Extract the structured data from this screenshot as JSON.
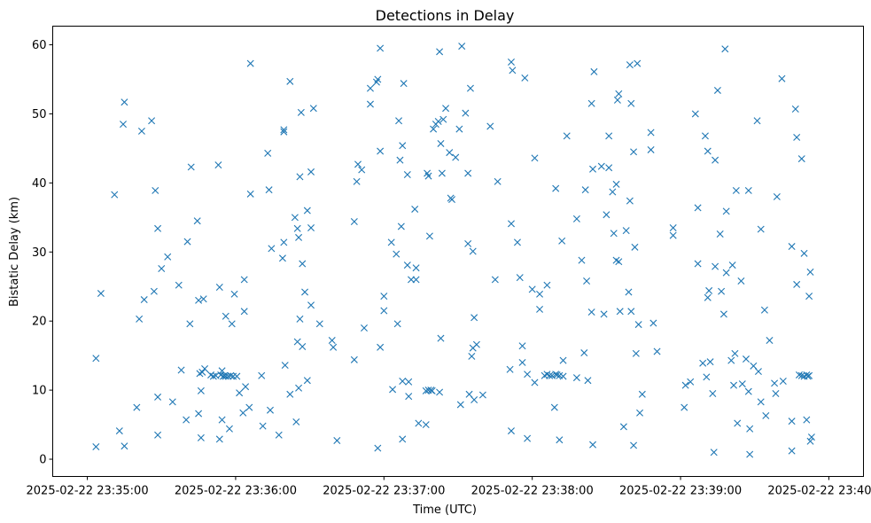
{
  "chart_data": {
    "type": "scatter",
    "title": "Detections in Delay",
    "xlabel": "Time (UTC)",
    "ylabel": "Bistatic Delay (km)",
    "marker": "x",
    "color": "#1f77b4",
    "grid": false,
    "x_unit": "seconds after 2025-02-22 23:35:00",
    "xlim": [
      -14,
      314
    ],
    "ylim": [
      -2.5,
      62.7
    ],
    "x_ticks": [
      {
        "value": 0,
        "label": "2025-02-22 23:35:00"
      },
      {
        "value": 60,
        "label": "2025-02-22 23:36:00"
      },
      {
        "value": 120,
        "label": "2025-02-22 23:37:00"
      },
      {
        "value": 180,
        "label": "2025-02-22 23:38:00"
      },
      {
        "value": 240,
        "label": "2025-02-22 23:39:00"
      },
      {
        "value": 300,
        "label": "2025-02-22 23:40:00"
      }
    ],
    "y_ticks": [
      {
        "value": 0,
        "label": "0"
      },
      {
        "value": 10,
        "label": "10"
      },
      {
        "value": 20,
        "label": "20"
      },
      {
        "value": 30,
        "label": "30"
      },
      {
        "value": 40,
        "label": "40"
      },
      {
        "value": 50,
        "label": "50"
      },
      {
        "value": 60,
        "label": "60"
      }
    ],
    "points": [
      [
        3.5,
        14.6
      ],
      [
        3.5,
        1.8
      ],
      [
        5.5,
        24.0
      ],
      [
        11,
        38.3
      ],
      [
        13,
        4.1
      ],
      [
        14.5,
        48.5
      ],
      [
        15,
        51.7
      ],
      [
        15,
        1.9
      ],
      [
        20,
        7.5
      ],
      [
        21,
        20.3
      ],
      [
        22,
        47.5
      ],
      [
        23,
        23.1
      ],
      [
        26,
        49.0
      ],
      [
        27,
        24.3
      ],
      [
        27.5,
        38.9
      ],
      [
        28.5,
        33.4
      ],
      [
        28.5,
        9.0
      ],
      [
        28.5,
        3.5
      ],
      [
        30,
        27.6
      ],
      [
        32.5,
        29.3
      ],
      [
        34.5,
        8.3
      ],
      [
        37,
        25.2
      ],
      [
        38,
        12.9
      ],
      [
        40,
        5.7
      ],
      [
        40.5,
        31.5
      ],
      [
        41.5,
        19.6
      ],
      [
        42,
        42.3
      ],
      [
        44.5,
        34.5
      ],
      [
        45,
        6.6
      ],
      [
        45,
        23.0
      ],
      [
        45.5,
        12.4
      ],
      [
        46,
        9.9
      ],
      [
        46,
        3.1
      ],
      [
        46.5,
        12.6
      ],
      [
        47,
        23.2
      ],
      [
        47.5,
        13.1
      ],
      [
        50,
        12.2
      ],
      [
        51,
        12.0
      ],
      [
        52,
        12.1
      ],
      [
        53,
        42.6
      ],
      [
        53.5,
        2.9
      ],
      [
        53.5,
        24.9
      ],
      [
        54,
        12.2
      ],
      [
        54.5,
        12.8
      ],
      [
        54.5,
        5.7
      ],
      [
        55,
        12.0
      ],
      [
        55.5,
        12.1
      ],
      [
        56,
        12.0
      ],
      [
        56,
        20.7
      ],
      [
        57,
        12.0
      ],
      [
        57.5,
        4.4
      ],
      [
        58,
        12.1
      ],
      [
        58.5,
        19.6
      ],
      [
        59,
        12.0
      ],
      [
        59.5,
        23.9
      ],
      [
        60.5,
        12.0
      ],
      [
        61.5,
        9.6
      ],
      [
        63,
        6.7
      ],
      [
        63.5,
        26.0
      ],
      [
        63.5,
        21.4
      ],
      [
        64,
        10.5
      ],
      [
        65.5,
        7.5
      ],
      [
        66,
        38.4
      ],
      [
        66,
        57.3
      ],
      [
        70.5,
        12.1
      ],
      [
        71,
        4.8
      ],
      [
        73,
        44.3
      ],
      [
        73.5,
        39.0
      ],
      [
        74,
        7.1
      ],
      [
        74.5,
        30.5
      ],
      [
        77.5,
        3.5
      ],
      [
        79,
        29.1
      ],
      [
        79.5,
        47.4
      ],
      [
        79.5,
        47.7
      ],
      [
        79.5,
        31.4
      ],
      [
        80,
        13.6
      ],
      [
        82,
        9.4
      ],
      [
        82,
        54.7
      ],
      [
        84,
        35.0
      ],
      [
        84.5,
        5.4
      ],
      [
        85,
        33.4
      ],
      [
        85,
        17.0
      ],
      [
        85.5,
        32.1
      ],
      [
        85.5,
        10.3
      ],
      [
        86,
        20.3
      ],
      [
        86,
        40.9
      ],
      [
        86.5,
        50.2
      ],
      [
        87,
        16.3
      ],
      [
        87,
        28.3
      ],
      [
        88,
        24.2
      ],
      [
        89,
        36.0
      ],
      [
        89,
        11.4
      ],
      [
        90.5,
        22.3
      ],
      [
        90.5,
        41.6
      ],
      [
        90.5,
        33.5
      ],
      [
        91.5,
        50.8
      ],
      [
        94,
        19.6
      ],
      [
        99,
        17.2
      ],
      [
        99.5,
        16.2
      ],
      [
        101,
        2.7
      ],
      [
        108,
        34.4
      ],
      [
        108,
        14.4
      ],
      [
        109,
        40.2
      ],
      [
        109.5,
        42.7
      ],
      [
        111,
        41.9
      ],
      [
        112,
        19.0
      ],
      [
        114.5,
        53.7
      ],
      [
        114.5,
        51.4
      ],
      [
        117,
        54.6
      ],
      [
        117.5,
        55.0
      ],
      [
        117.5,
        1.6
      ],
      [
        118.5,
        16.2
      ],
      [
        118.5,
        44.6
      ],
      [
        118.5,
        59.5
      ],
      [
        120,
        23.6
      ],
      [
        120,
        21.5
      ],
      [
        123,
        31.4
      ],
      [
        123.5,
        10.1
      ],
      [
        125,
        29.7
      ],
      [
        125.5,
        19.6
      ],
      [
        126,
        49.0
      ],
      [
        126.5,
        43.3
      ],
      [
        127,
        33.7
      ],
      [
        127.5,
        45.4
      ],
      [
        127.5,
        11.3
      ],
      [
        127.5,
        2.9
      ],
      [
        128,
        54.4
      ],
      [
        129.5,
        28.1
      ],
      [
        129.5,
        41.2
      ],
      [
        130,
        9.1
      ],
      [
        130,
        11.2
      ],
      [
        131,
        26.0
      ],
      [
        132.5,
        36.2
      ],
      [
        133,
        26.0
      ],
      [
        133,
        27.7
      ],
      [
        134,
        5.2
      ],
      [
        137,
        9.9
      ],
      [
        137,
        5.0
      ],
      [
        137.5,
        41.4
      ],
      [
        138,
        10.0
      ],
      [
        138,
        41.0
      ],
      [
        138.5,
        32.3
      ],
      [
        139,
        10.0
      ],
      [
        139.5,
        9.9
      ],
      [
        140,
        47.8
      ],
      [
        141,
        48.5
      ],
      [
        142,
        48.9
      ],
      [
        142.5,
        59.0
      ],
      [
        142.5,
        9.7
      ],
      [
        143,
        45.7
      ],
      [
        143,
        17.5
      ],
      [
        143.5,
        41.4
      ],
      [
        144,
        49.2
      ],
      [
        145,
        50.8
      ],
      [
        146.5,
        44.4
      ],
      [
        147,
        37.8
      ],
      [
        147.5,
        37.6
      ],
      [
        149,
        43.7
      ],
      [
        150.5,
        47.8
      ],
      [
        151,
        7.9
      ],
      [
        151.5,
        59.8
      ],
      [
        153,
        50.1
      ],
      [
        154,
        41.4
      ],
      [
        154,
        31.2
      ],
      [
        154.5,
        9.4
      ],
      [
        155,
        53.7
      ],
      [
        155.5,
        14.9
      ],
      [
        156,
        30.1
      ],
      [
        156,
        16.1
      ],
      [
        156.5,
        8.6
      ],
      [
        156.5,
        20.5
      ],
      [
        157.5,
        16.6
      ],
      [
        160,
        9.3
      ],
      [
        163,
        48.2
      ],
      [
        165,
        26.0
      ],
      [
        166,
        40.2
      ],
      [
        171,
        13.0
      ],
      [
        171.5,
        34.1
      ],
      [
        171.5,
        4.1
      ],
      [
        171.5,
        57.5
      ],
      [
        172,
        56.3
      ],
      [
        174,
        31.4
      ],
      [
        175,
        26.3
      ],
      [
        176,
        16.4
      ],
      [
        176,
        14.0
      ],
      [
        177,
        55.2
      ],
      [
        178,
        12.3
      ],
      [
        178,
        3.0
      ],
      [
        180,
        24.6
      ],
      [
        181,
        43.6
      ],
      [
        181,
        11.1
      ],
      [
        183,
        23.9
      ],
      [
        183,
        21.7
      ],
      [
        185,
        12.1
      ],
      [
        186,
        25.2
      ],
      [
        186,
        12.3
      ],
      [
        187,
        12.1
      ],
      [
        188,
        12.1
      ],
      [
        189,
        7.5
      ],
      [
        189.5,
        12.3
      ],
      [
        189.5,
        39.2
      ],
      [
        190,
        12.2
      ],
      [
        191,
        12.1
      ],
      [
        191,
        2.8
      ],
      [
        192,
        31.6
      ],
      [
        192.5,
        14.3
      ],
      [
        192.5,
        12.0
      ],
      [
        194,
        46.8
      ],
      [
        198,
        11.8
      ],
      [
        198,
        34.8
      ],
      [
        200,
        28.8
      ],
      [
        201,
        15.4
      ],
      [
        201.5,
        39.0
      ],
      [
        202,
        25.8
      ],
      [
        202.5,
        11.4
      ],
      [
        204,
        21.3
      ],
      [
        204,
        51.5
      ],
      [
        204.5,
        42.0
      ],
      [
        204.5,
        2.1
      ],
      [
        205,
        56.1
      ],
      [
        208,
        42.4
      ],
      [
        209,
        21.0
      ],
      [
        210,
        35.4
      ],
      [
        211,
        46.8
      ],
      [
        211,
        42.2
      ],
      [
        212.5,
        38.7
      ],
      [
        213,
        32.7
      ],
      [
        214,
        39.8
      ],
      [
        214,
        28.8
      ],
      [
        214.5,
        52.0
      ],
      [
        215,
        52.9
      ],
      [
        215,
        28.6
      ],
      [
        215.5,
        21.4
      ],
      [
        217,
        4.7
      ],
      [
        218,
        33.1
      ],
      [
        219,
        24.2
      ],
      [
        219.5,
        37.4
      ],
      [
        219.5,
        57.1
      ],
      [
        220,
        51.5
      ],
      [
        220,
        21.4
      ],
      [
        221,
        44.5
      ],
      [
        221,
        2.0
      ],
      [
        221.5,
        30.7
      ],
      [
        222,
        15.3
      ],
      [
        222.5,
        57.3
      ],
      [
        223,
        19.5
      ],
      [
        223.5,
        6.7
      ],
      [
        224.5,
        9.4
      ],
      [
        228,
        47.3
      ],
      [
        228,
        44.8
      ],
      [
        229,
        19.7
      ],
      [
        230.5,
        15.6
      ],
      [
        237,
        33.5
      ],
      [
        237,
        32.4
      ],
      [
        241.5,
        7.5
      ],
      [
        242,
        10.7
      ],
      [
        244,
        11.2
      ],
      [
        246,
        50.0
      ],
      [
        247,
        28.3
      ],
      [
        247,
        36.4
      ],
      [
        249,
        13.9
      ],
      [
        250,
        46.8
      ],
      [
        250.5,
        11.9
      ],
      [
        251,
        23.4
      ],
      [
        251,
        44.6
      ],
      [
        251.5,
        24.4
      ],
      [
        252,
        14.1
      ],
      [
        253,
        9.5
      ],
      [
        253.5,
        1.0
      ],
      [
        254,
        43.3
      ],
      [
        254,
        27.9
      ],
      [
        255,
        53.4
      ],
      [
        256,
        32.6
      ],
      [
        256.5,
        24.3
      ],
      [
        257.5,
        21.0
      ],
      [
        258,
        59.4
      ],
      [
        258.5,
        35.9
      ],
      [
        258.5,
        27.0
      ],
      [
        260.5,
        14.3
      ],
      [
        261,
        28.1
      ],
      [
        261.5,
        10.7
      ],
      [
        262,
        15.3
      ],
      [
        262.5,
        38.9
      ],
      [
        263,
        5.2
      ],
      [
        264.5,
        25.8
      ],
      [
        265,
        10.9
      ],
      [
        266.5,
        14.5
      ],
      [
        267.5,
        38.9
      ],
      [
        267.5,
        9.8
      ],
      [
        268,
        4.4
      ],
      [
        268,
        0.7
      ],
      [
        269.5,
        13.5
      ],
      [
        271,
        49.0
      ],
      [
        271.5,
        12.7
      ],
      [
        272.5,
        8.3
      ],
      [
        272.5,
        33.3
      ],
      [
        274,
        21.6
      ],
      [
        274.5,
        6.3
      ],
      [
        276,
        17.2
      ],
      [
        278,
        11.0
      ],
      [
        278.5,
        9.5
      ],
      [
        279,
        38.0
      ],
      [
        281,
        55.1
      ],
      [
        281.5,
        11.3
      ],
      [
        285,
        1.2
      ],
      [
        285,
        30.8
      ],
      [
        285,
        5.5
      ],
      [
        286.5,
        50.7
      ],
      [
        287,
        25.3
      ],
      [
        287,
        46.6
      ],
      [
        288,
        12.2
      ],
      [
        289,
        43.5
      ],
      [
        289,
        12.1
      ],
      [
        290,
        12.0
      ],
      [
        290,
        29.8
      ],
      [
        291,
        12.2
      ],
      [
        291,
        5.7
      ],
      [
        291.5,
        12.0
      ],
      [
        292,
        23.6
      ],
      [
        292,
        12.1
      ],
      [
        292.5,
        2.6
      ],
      [
        292.5,
        27.1
      ],
      [
        293,
        3.2
      ]
    ]
  }
}
